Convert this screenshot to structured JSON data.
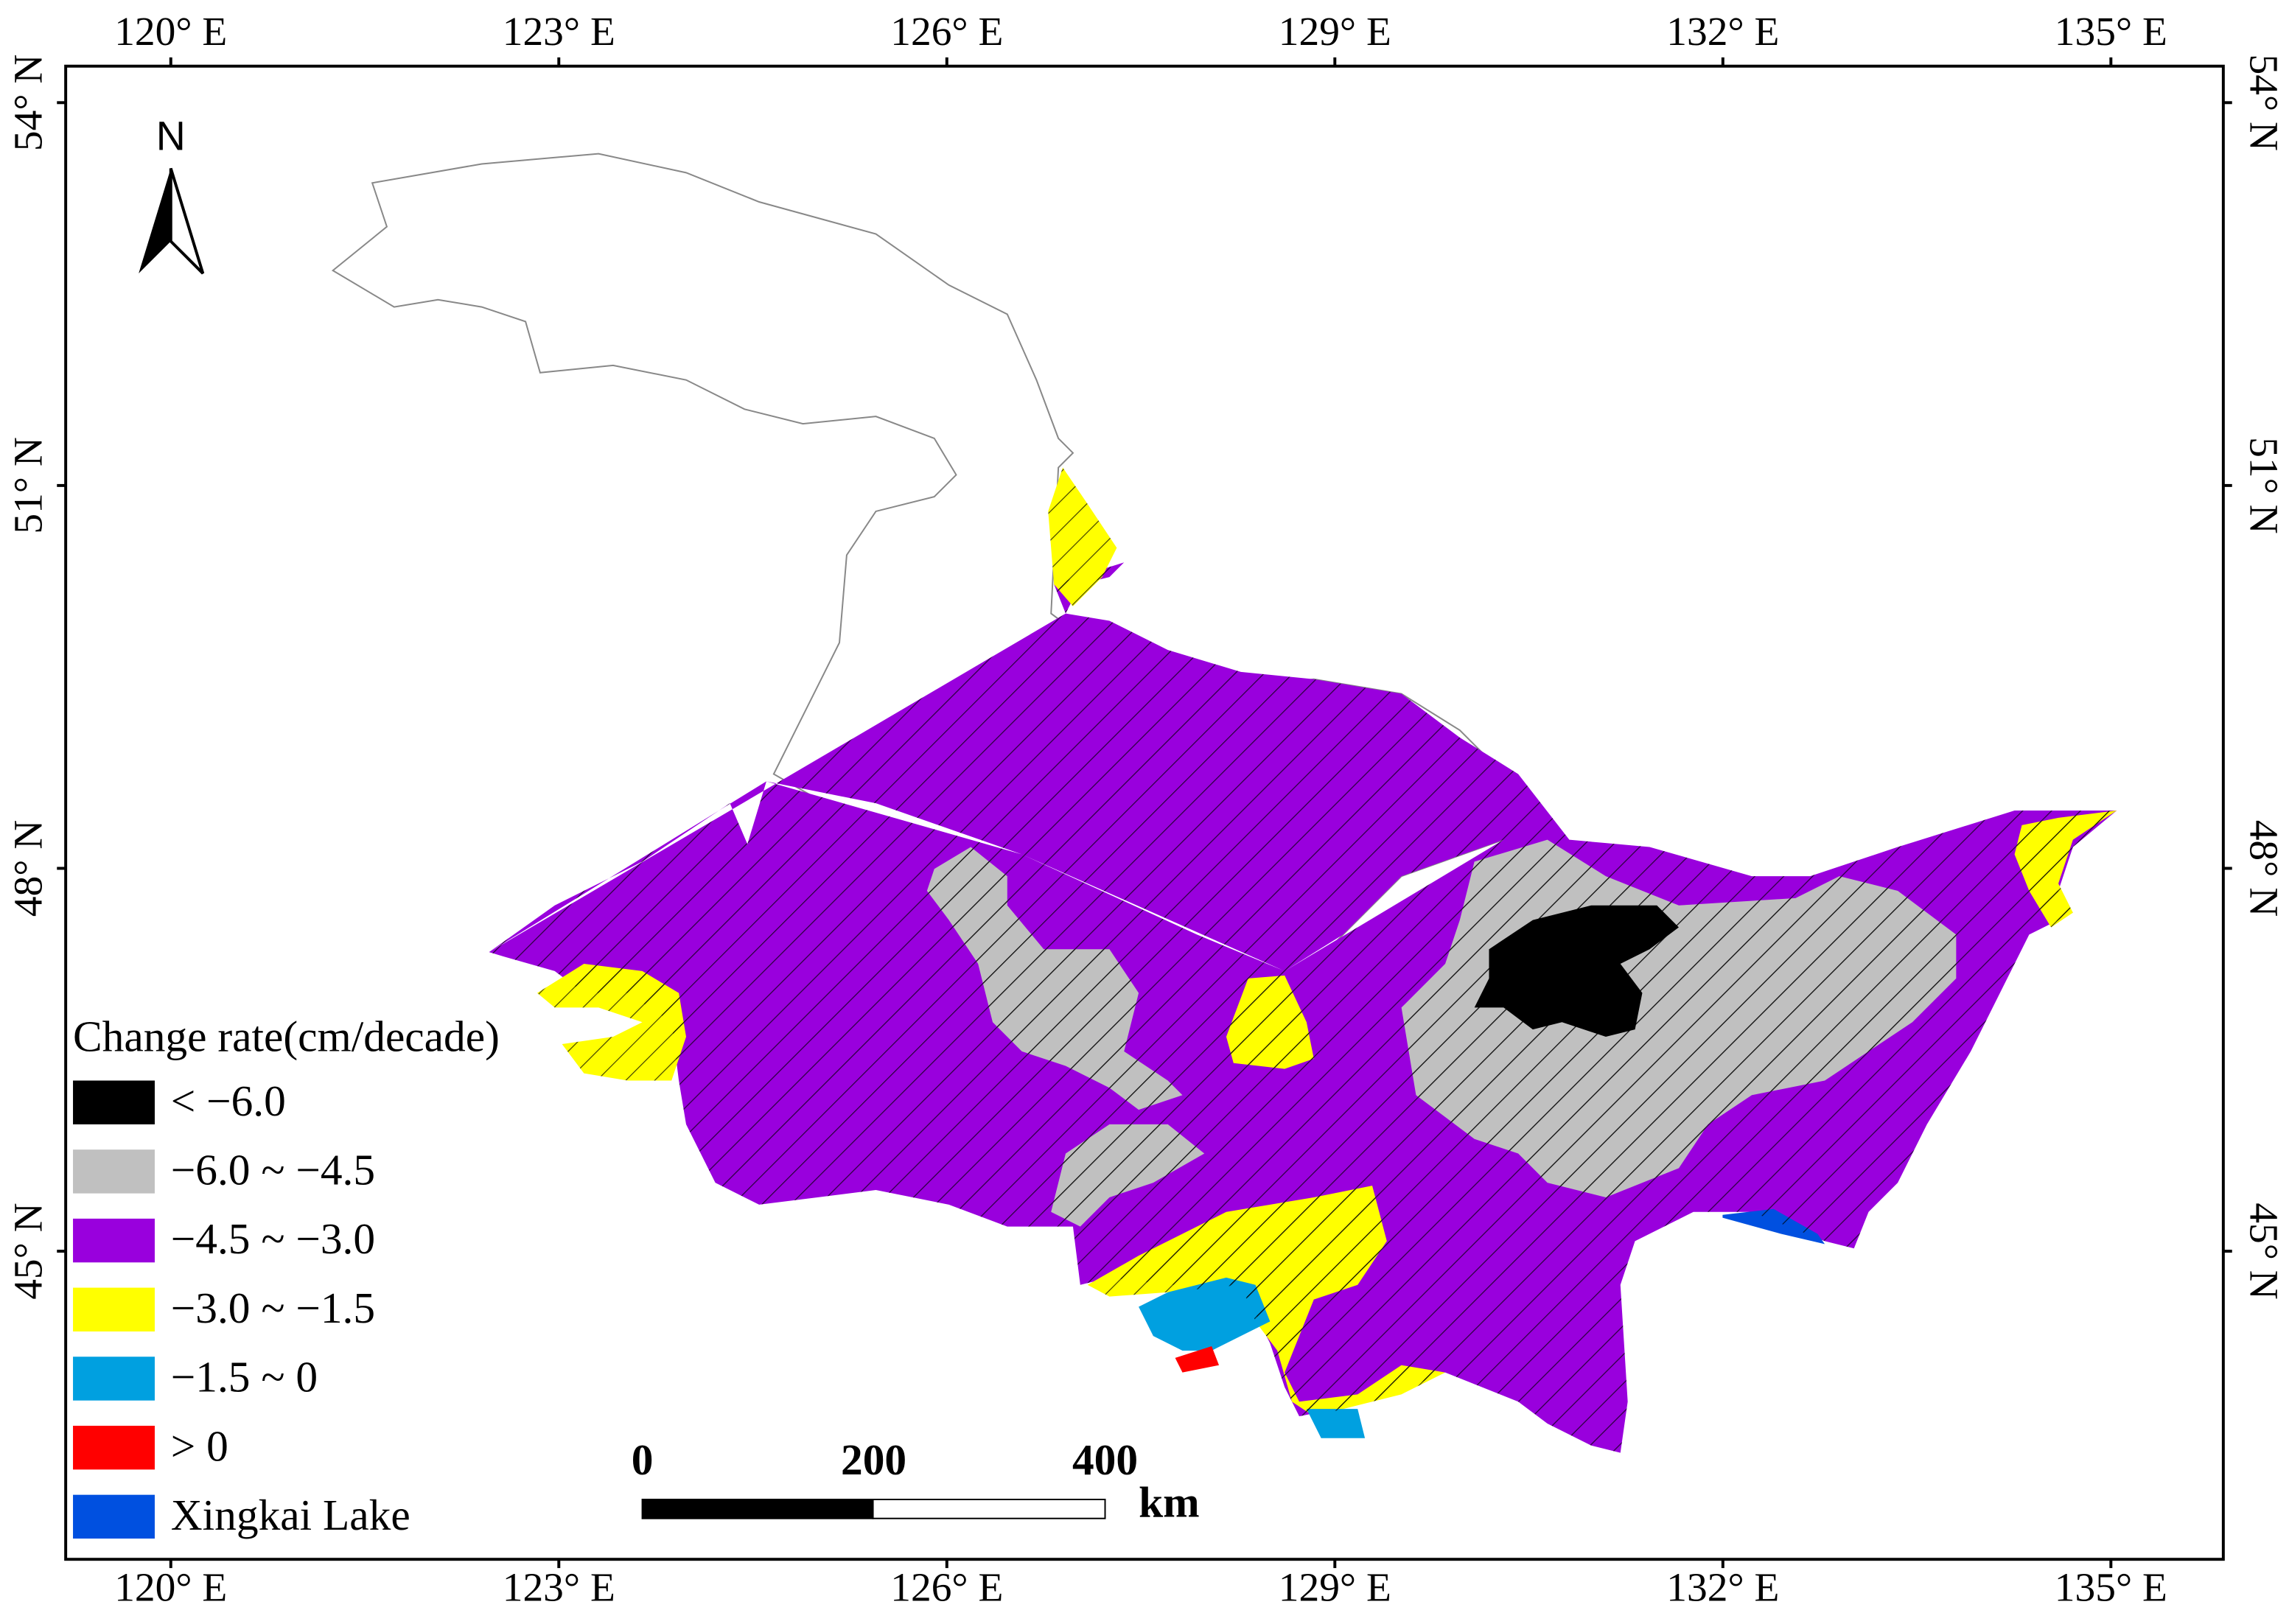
{
  "north": "N",
  "longitudes": [
    "120° E",
    "123° E",
    "126° E",
    "129° E",
    "132° E",
    "135° E"
  ],
  "latitudes": [
    "54° N",
    "51° N",
    "48° N",
    "45° N"
  ],
  "legend": {
    "title": "Change rate(cm/decade)",
    "items": [
      {
        "label": "< −6.0",
        "color": "#000000"
      },
      {
        "label": "−6.0 ~ −4.5",
        "color": "#c0c0c0"
      },
      {
        "label": "−4.5 ~ −3.0",
        "color": "#9900dd"
      },
      {
        "label": "−3.0 ~ −1.5",
        "color": "#ffff00"
      },
      {
        "label": "−1.5 ~ 0",
        "color": "#00a0e0"
      },
      {
        "label": "> 0",
        "color": "#ff0000"
      },
      {
        "label": "Xingkai Lake",
        "color": "#0050e0"
      }
    ]
  },
  "scale_bar": {
    "labels": [
      "0",
      "200",
      "400"
    ],
    "unit": "km"
  }
}
